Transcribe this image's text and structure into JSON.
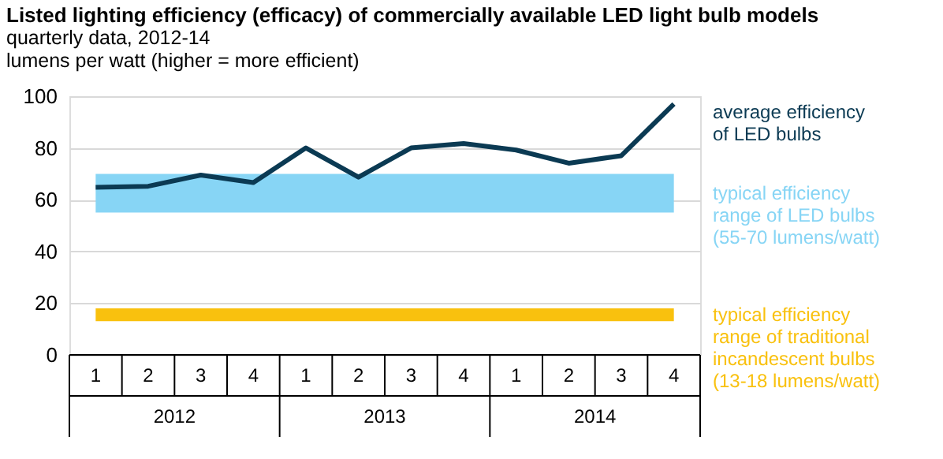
{
  "chart_data": {
    "type": "line",
    "title": "Listed lighting efficiency (efficacy) of commercially available LED light bulb models",
    "subtitle": "quarterly data, 2012-14",
    "ylabel": "lumens per watt (higher = more efficient)",
    "categories": [
      "1",
      "2",
      "3",
      "4",
      "1",
      "2",
      "3",
      "4",
      "1",
      "2",
      "3",
      "4"
    ],
    "series": [
      {
        "name": "average efficiency\nof LED bulbs",
        "color": "#0b3a53",
        "values": [
          64.8,
          65.2,
          69.5,
          66.6,
          80,
          68.7,
          80,
          81.7,
          79.2,
          74.1,
          77,
          97
        ]
      }
    ],
    "bands": [
      {
        "axis": "y",
        "from": 55,
        "to": 70,
        "label": "typical efficiency\nrange of LED bulbs\n(55-70 lumens/watt)",
        "color": "#87d5f5"
      },
      {
        "axis": "y",
        "from": 13,
        "to": 18,
        "label": "typical efficiency\nrange of traditional\nincandescent bulbs\n(13-18 lumens/watt)",
        "color": "#f9c10e"
      }
    ],
    "annotations": [
      "2012",
      "2013",
      "2014"
    ],
    "ylim": [
      0,
      100
    ],
    "yticks": [
      0,
      20,
      40,
      60,
      80,
      100
    ],
    "grid": "y",
    "marker": "none",
    "line_style": "solid"
  }
}
